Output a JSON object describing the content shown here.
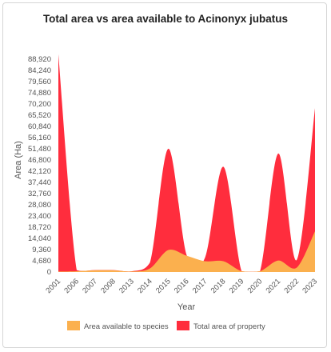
{
  "chart_data": {
    "type": "area",
    "title": "Total area vs area available to Acinonyx jubatus",
    "xlabel": "Year",
    "ylabel": "Area (Ha)",
    "ylim": [
      0,
      93600
    ],
    "yticks": [
      "0",
      "4,680",
      "9,360",
      "14,040",
      "18,720",
      "23,400",
      "28,080",
      "32,760",
      "37,440",
      "42,120",
      "46,800",
      "51,480",
      "56,160",
      "60,840",
      "65,520",
      "70,200",
      "74,880",
      "79,560",
      "84,240",
      "88,920"
    ],
    "yticks_values": [
      0,
      4680,
      9360,
      14040,
      18720,
      23400,
      28080,
      32760,
      37440,
      42120,
      46800,
      51480,
      56160,
      60840,
      65520,
      70200,
      74880,
      79560,
      84240,
      88920
    ],
    "categories": [
      "2001",
      "2006",
      "2007",
      "2008",
      "2013",
      "2014",
      "2015",
      "2016",
      "2017",
      "2018",
      "2019",
      "2020",
      "2021",
      "2022",
      "2023"
    ],
    "series": [
      {
        "name": "Area available to species",
        "color": "#fbb04e",
        "values": [
          200,
          300,
          700,
          700,
          200,
          1500,
          9200,
          6800,
          4500,
          4500,
          300,
          300,
          4800,
          1800,
          17000
        ]
      },
      {
        "name": "Total area of property",
        "color": "#ff2d3d",
        "values": [
          91000,
          800,
          800,
          800,
          300,
          4000,
          51500,
          7000,
          6000,
          44000,
          300,
          300,
          49500,
          5000,
          68500
        ]
      }
    ],
    "legend": "bottom",
    "grid": false
  }
}
